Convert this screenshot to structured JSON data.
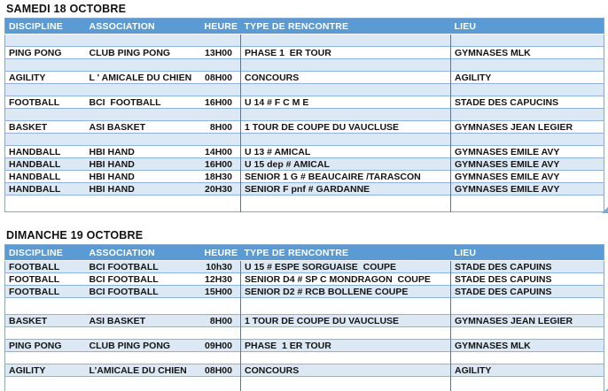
{
  "colors": {
    "header_bg": "#5B9BD5",
    "band_bg": "#DCE9F5",
    "row_line": "#8FB2DA",
    "col_line": "#5E7590",
    "border_outer": "#7FA8D4",
    "handle": "#7FA8D4"
  },
  "columns": [
    "DISCIPLINE",
    "ASSOCIATION",
    "HEURE",
    "TYPE DE RENCONTRE",
    "LIEU"
  ],
  "tables": [
    {
      "title": "SAMEDI 18 OCTOBRE",
      "rows": [
        {
          "cells": [
            "",
            "",
            "",
            "",
            ""
          ]
        },
        {
          "cells": [
            "PING PONG",
            "CLUB PING PONG",
            "13H00",
            "PHASE 1  ER TOUR",
            "GYMNASES MLK"
          ]
        },
        {
          "cells": [
            "",
            "",
            "",
            "",
            ""
          ]
        },
        {
          "cells": [
            "AGILITY",
            "L ' AMICALE DU CHIEN",
            "08H00",
            "CONCOURS",
            "AGILITY"
          ]
        },
        {
          "cells": [
            "",
            "",
            "",
            "",
            ""
          ]
        },
        {
          "cells": [
            "FOOTBALL",
            "BCI  FOOTBALL",
            "16H00",
            "U 14 # F C M E",
            "STADE DES CAPUCINS"
          ]
        },
        {
          "cells": [
            "",
            "",
            "",
            "",
            ""
          ]
        },
        {
          "cells": [
            "BASKET",
            "ASI BASKET",
            "8H00",
            "1 TOUR DE COUPE DU VAUCLUSE",
            "GYMNASES JEAN LEGIER"
          ]
        },
        {
          "cells": [
            "",
            "",
            "",
            "",
            ""
          ]
        },
        {
          "cells": [
            "HANDBALL",
            "HBI HAND",
            "14H00",
            "U 13 # AMICAL",
            "GYMNASES EMILE AVY"
          ]
        },
        {
          "cells": [
            "HANDBALL",
            "HBI HAND",
            "16H00",
            "U 15 dep # AMICAL",
            "GYMNASES EMILE AVY"
          ]
        },
        {
          "cells": [
            "HANDBALL",
            "HBI HAND",
            "18H30",
            "SENIOR 1 G # BEAUCAIRE /TARASCON",
            "GYMNASES EMILE AVY"
          ]
        },
        {
          "cells": [
            "HANDBALL",
            "HBI HAND",
            "20H30",
            "SENIOR F pnf # GARDANNE",
            "GYMNASES EMILE AVY"
          ]
        },
        {
          "cells": [
            "",
            "",
            "",
            "",
            ""
          ],
          "tall": true
        }
      ]
    },
    {
      "title": "DIMANCHE 19 OCTOBRE",
      "rows": [
        {
          "cells": [
            "FOOTBALL",
            "BCI FOOTBALL",
            "10h30",
            "U 15 # ESPE SORGUAISE  COUPE",
            "STADE DES CAPUINS"
          ]
        },
        {
          "cells": [
            "FOOTBALL",
            "BCI FOOTBALL",
            "12H30",
            "SENIOR D4 # SP C MONDRAGON  COUPE",
            "STADE DES CAPUINS"
          ]
        },
        {
          "cells": [
            "FOOTBALL",
            "BCI FOOTBALL",
            "15H00",
            "SENIOR D2 # RCB BOLLENE COUPE",
            "STADE DES CAPUINS"
          ]
        },
        {
          "cells": [
            "",
            "",
            "",
            "",
            ""
          ],
          "tall": true
        },
        {
          "cells": [
            "BASKET",
            "ASI BASKET",
            "8H00",
            "1 TOUR DE COUPE DU VAUCLUSE",
            "GYMNASES JEAN LEGIER"
          ]
        },
        {
          "cells": [
            "",
            "",
            "",
            "",
            ""
          ]
        },
        {
          "cells": [
            "PING PONG",
            "CLUB PING PONG",
            "09H00",
            "PHASE  1 ER TOUR",
            "GYMNASES MLK"
          ]
        },
        {
          "cells": [
            "",
            "",
            "",
            "",
            ""
          ]
        },
        {
          "cells": [
            "AGILITY",
            "L’AMICALE DU CHIEN",
            "08H00",
            "CONCOURS",
            "AGILITY"
          ]
        },
        {
          "cells": [
            "",
            "",
            "",
            "",
            ""
          ],
          "tall": true
        }
      ]
    }
  ]
}
